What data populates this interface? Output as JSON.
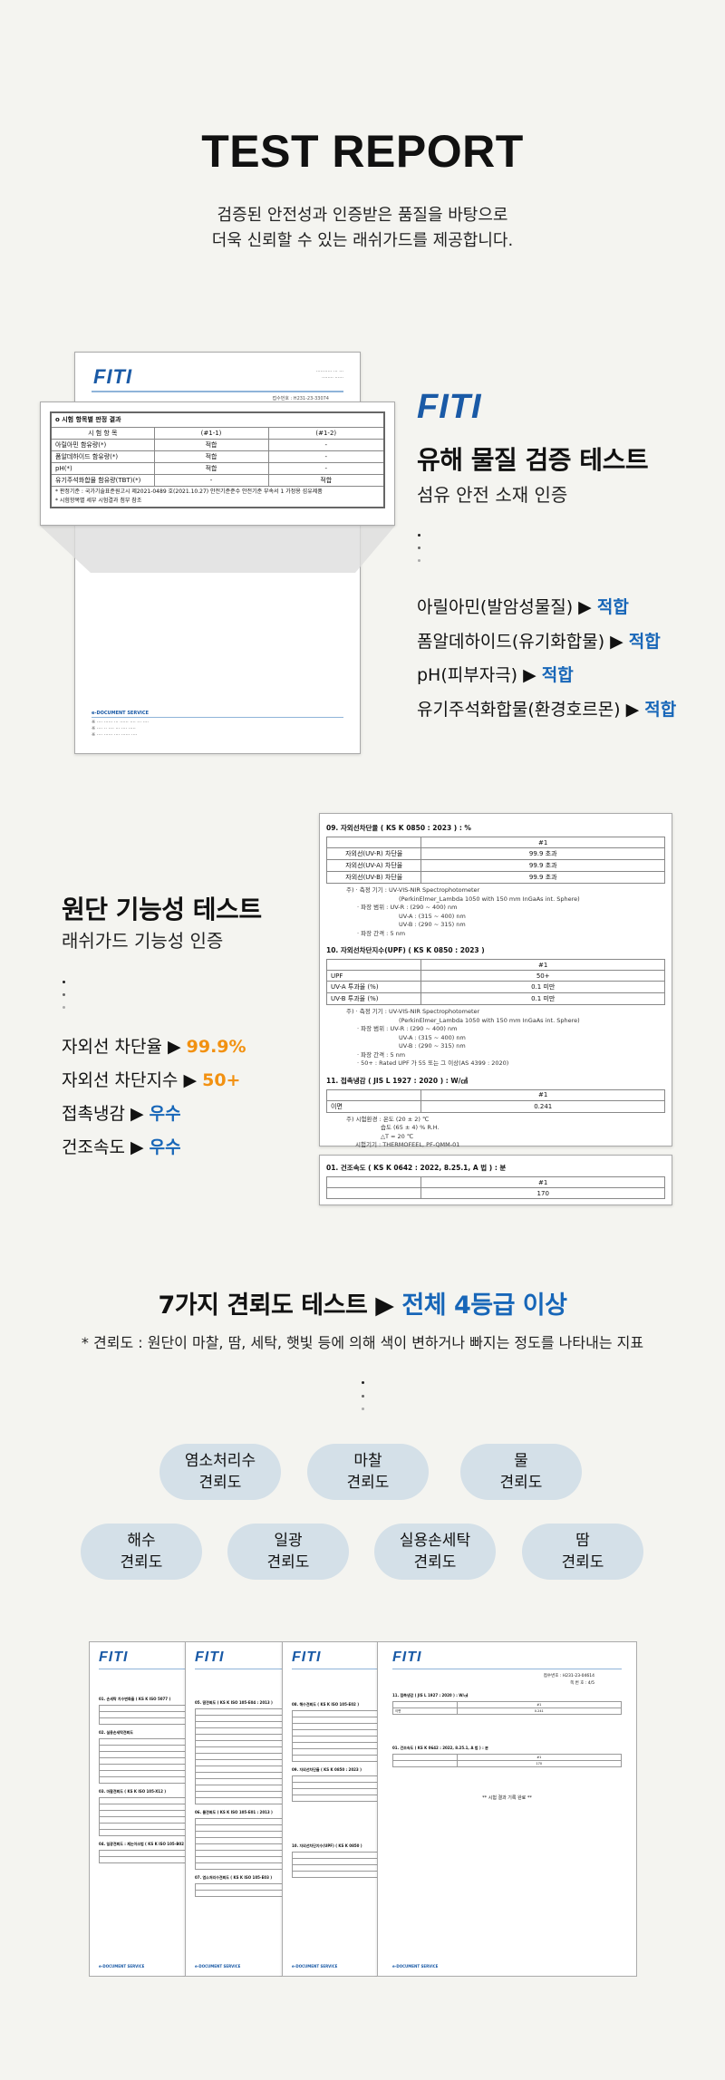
{
  "header": {
    "title": "TEST REPORT",
    "subtitle_lines": [
      "검증된 안전성과 인증받은 품질을 바탕으로",
      "더욱 신뢰할 수 있는 래쉬가드를 제공합니다."
    ]
  },
  "brand": {
    "logo": "FITI",
    "accent": "#1766b8",
    "orange": "#f29111"
  },
  "section1": {
    "heading": "유해 물질 검증 테스트",
    "subheading": "섬유 안전 소재 인증",
    "items": [
      {
        "label": "아릴아민(발암성물질) ▶ ",
        "result": "적합"
      },
      {
        "label": "폼알데하이드(유기화합물) ▶ ",
        "result": "적합"
      },
      {
        "label": "pH(피부자극) ▶ ",
        "result": "적합"
      },
      {
        "label": "유기주석화합물(환경호르몬) ▶ ",
        "result": "적합"
      }
    ],
    "doc": {
      "receipt": "접수번호 : H231-23-33074",
      "table_title": "o 시험 항목별 판정 결과",
      "columns": [
        "시 험 항 목",
        "(#1-1)",
        "(#1-2)"
      ],
      "rows": [
        [
          "아릴아민 함유량(*)",
          "적합",
          "-"
        ],
        [
          "폼알데하이드 함유량(*)",
          "적합",
          "-"
        ],
        [
          "pH(*)",
          "적합",
          "-"
        ],
        [
          "유기주석화합물 함유량(TBT)(*)",
          "-",
          "적합"
        ]
      ],
      "notes": [
        "* 판정기준 : 국가기술표준원고시 제2021-0489 호(2021.10.27) 안전기준준수 안전기준 부속서 1 가정용 섬유제품",
        "* 시험항목별 세부 시험결과 첨부 참조"
      ],
      "footer": "e-DOCUMENT SERVICE"
    }
  },
  "section2": {
    "heading": "원단 기능성 테스트",
    "subheading": "래쉬가드 기능성 인증",
    "items": [
      {
        "label": "자외선 차단율 ▶ ",
        "result": "99.9%",
        "color": "orange"
      },
      {
        "label": "자외선 차단지수 ▶ ",
        "result": "50+",
        "color": "orange"
      },
      {
        "label": "접촉냉감 ▶ ",
        "result": "우수",
        "color": "blue"
      },
      {
        "label": "건조속도 ▶ ",
        "result": "우수",
        "color": "blue"
      }
    ],
    "doc": {
      "s09": {
        "title": "09.  자외선차단율 ( KS K 0850 : 2023 ) : %",
        "col": "#1",
        "rows": [
          [
            "자외선(UV-R) 차단율",
            "99.9 초과"
          ],
          [
            "자외선(UV-A) 차단율",
            "99.9 초과"
          ],
          [
            "자외선(UV-B) 차단율",
            "99.9 초과"
          ]
        ],
        "notes": [
          "주)  · 측정 기기 : UV-VIS-NIR Spectrophotometer",
          "(PerkinElmer_Lambda 1050 with 150 mm InGaAs int. Sphere)",
          "· 파장 범위 : UV-R : (290 ~ 400) nm",
          "UV-A : (315 ~ 400) nm",
          "UV-B : (290 ~ 315) nm",
          "· 파장 간격 : 5 nm"
        ]
      },
      "s10": {
        "title": "10.  자외선차단지수(UPF) ( KS K 0850 : 2023 )",
        "col": "#1",
        "rows": [
          [
            "UPF",
            "50+"
          ],
          [
            "UV-A 투과율 (%)",
            "0.1 미만"
          ],
          [
            "UV-B 투과율 (%)",
            "0.1 미만"
          ]
        ],
        "notes": [
          "주)  · 측정 기기 : UV-VIS-NIR Spectrophotometer",
          "(PerkinElmer_Lambda 1050 with 150 mm InGaAs int. Sphere)",
          "· 파장 범위 : UV-R : (290 ~ 400) nm",
          "UV-A : (315 ~ 400) nm",
          "UV-B : (290 ~ 315) nm",
          "· 파장 간격 : 5 nm",
          "· 50+ : Rated UPF 가 55 또는 그 이상(AS 4399 : 2020)"
        ]
      },
      "s11": {
        "title": "11.  접촉냉감 ( JIS L 1927 : 2020 ) : W/㎠",
        "col": "#1",
        "rows": [
          [
            "이면",
            "0.241"
          ]
        ],
        "notes": [
          "주) 시험환경 : 온도 (20 ± 2) ℃",
          "습도 (65 ± 4) % R.H.",
          "△T = 20 ℃",
          "시험기기 : THERMOFEEL, PF-QMM-01"
        ]
      },
      "s01": {
        "title": "01.  건조속도 ( KS K 0642 : 2022, 8.25.1, A 법 ) : 분",
        "col": "#1",
        "rows": [
          [
            "",
            "170"
          ]
        ]
      }
    }
  },
  "section3": {
    "heading_prefix": "7가지 견뢰도 테스트 ▶ ",
    "heading_highlight": "전체 4등급 이상",
    "note": "* 견뢰도 : 원단이 마찰, 땀, 세탁, 햇빛 등에 의해 색이 변하거나 빠지는 정도를 나타내는 지표",
    "tests": [
      [
        "염소처리수",
        "견뢰도"
      ],
      [
        "마찰",
        "견뢰도"
      ],
      [
        "물",
        "견뢰도"
      ],
      [
        "해수",
        "견뢰도"
      ],
      [
        "일광",
        "견뢰도"
      ],
      [
        "실용손세탁",
        "견뢰도"
      ],
      [
        "땀",
        "견뢰도"
      ]
    ]
  },
  "section4": {
    "sheet1": [
      "01. 손세탁 치수변화율 ( KS K ISO 5077 )",
      "02. 실용손세탁견뢰도",
      "03. 마찰견뢰도 ( KS K ISO 105-X12 )",
      "04. 일광견뢰도 : 제논아크법 ( KS K ISO 105-B02 )"
    ],
    "sheet2": [
      "05. 땀견뢰도 ( KS K ISO 105-E04 : 2013 )",
      "06. 물견뢰도 ( KS K ISO 105-E01 : 2013 )",
      "07. 염소처리수견뢰도 ( KS K ISO 105-E03 )"
    ],
    "sheet3": [
      "08. 해수견뢰도 ( KS K ISO 105-E02 )",
      "09. 자외선차단율 ( KS K 0850 : 2023 )",
      "10. 자외선차단지수(UPF) ( KS K 0850 )"
    ],
    "sheet4": {
      "receipt": "접수번호 : H231-23-04614",
      "page": "쪽 번 호 : 4/5",
      "s11": "11. 접촉냉감 ( JIS L 1927 : 2020 ) : W/㎠",
      "s11_value": "0.241",
      "s11_row": "이면",
      "s01": "01. 건조속도 ( KS K 0642 : 2022, 8.25.1, A 법 ) : 분",
      "s01_value": "170",
      "col": "#1",
      "end": "** 시험 결과 기록 완료 **"
    },
    "footer": "e-DOCUMENT SERVICE"
  }
}
